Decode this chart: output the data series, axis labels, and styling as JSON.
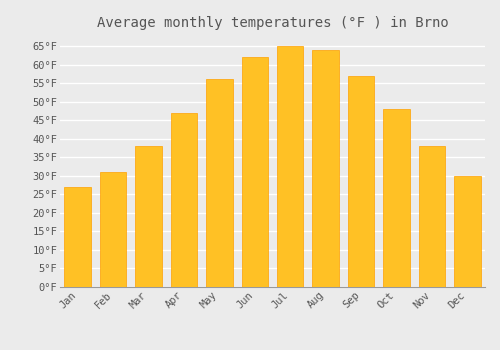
{
  "title": "Average monthly temperatures (°F ) in Brno",
  "months": [
    "Jan",
    "Feb",
    "Mar",
    "Apr",
    "May",
    "Jun",
    "Jul",
    "Aug",
    "Sep",
    "Oct",
    "Nov",
    "Dec"
  ],
  "values": [
    27,
    31,
    38,
    47,
    56,
    62,
    65,
    64,
    57,
    48,
    38,
    30
  ],
  "bar_color": "#FFC125",
  "bar_edge_color": "#FFA000",
  "background_color": "#ebebeb",
  "grid_color": "#ffffff",
  "text_color": "#555555",
  "ylim": [
    0,
    68
  ],
  "yticks": [
    0,
    5,
    10,
    15,
    20,
    25,
    30,
    35,
    40,
    45,
    50,
    55,
    60,
    65
  ],
  "title_fontsize": 10,
  "tick_fontsize": 7.5,
  "font_family": "monospace",
  "bar_width": 0.75
}
